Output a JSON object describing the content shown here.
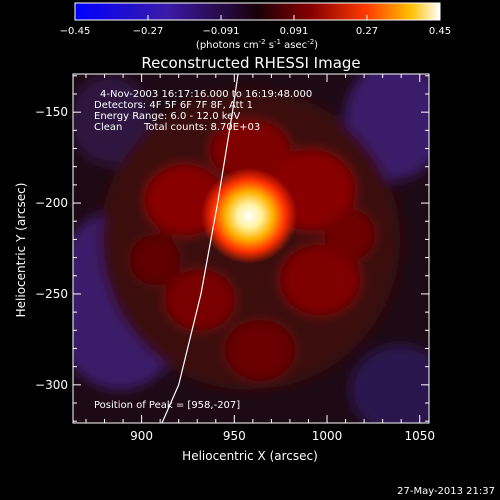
{
  "chart_data": {
    "type": "heatmap",
    "title": "Reconstructed RHESSI Image",
    "xlabel": "Heliocentric X (arcsec)",
    "ylabel": "Heliocentric Y (arcsec)",
    "xlim": [
      863,
      1055
    ],
    "ylim": [
      -321,
      -129
    ],
    "x_ticks": [
      900,
      950,
      1000,
      1050
    ],
    "y_ticks": [
      -150,
      -200,
      -250,
      -300
    ],
    "colorbar": {
      "min": -0.45,
      "max": 0.45,
      "ticks": [
        "-0.45",
        "-0.27",
        "-0.091",
        "0.091",
        "0.27",
        "0.45"
      ],
      "unit_text": "(photons cm",
      "unit_exp1": "-2",
      "unit_mid": " s",
      "unit_exp2": "-1",
      "unit_mid2": " asec",
      "unit_exp3": "-2",
      "unit_close": ")"
    },
    "annotations": {
      "time_range": "4-Nov-2003 16:17:16.000 to 16:19:48.000",
      "detectors": "Detectors: 4F 5F 6F 7F 8F, Att 1",
      "energy": "Energy Range: 6.0 - 12.0 keV",
      "clean_label": "Clean",
      "total_counts": "Total counts: 8.70E+03",
      "peak": "Position of Peak = [958,-207]"
    },
    "peak": {
      "x": 958,
      "y": -207
    },
    "limb_curve": [
      [
        911,
        -321
      ],
      [
        920,
        -300
      ],
      [
        932,
        -250
      ],
      [
        941,
        -200
      ],
      [
        949,
        -150
      ],
      [
        952,
        -129
      ]
    ],
    "timestamp": "27-May-2013 21:37"
  }
}
